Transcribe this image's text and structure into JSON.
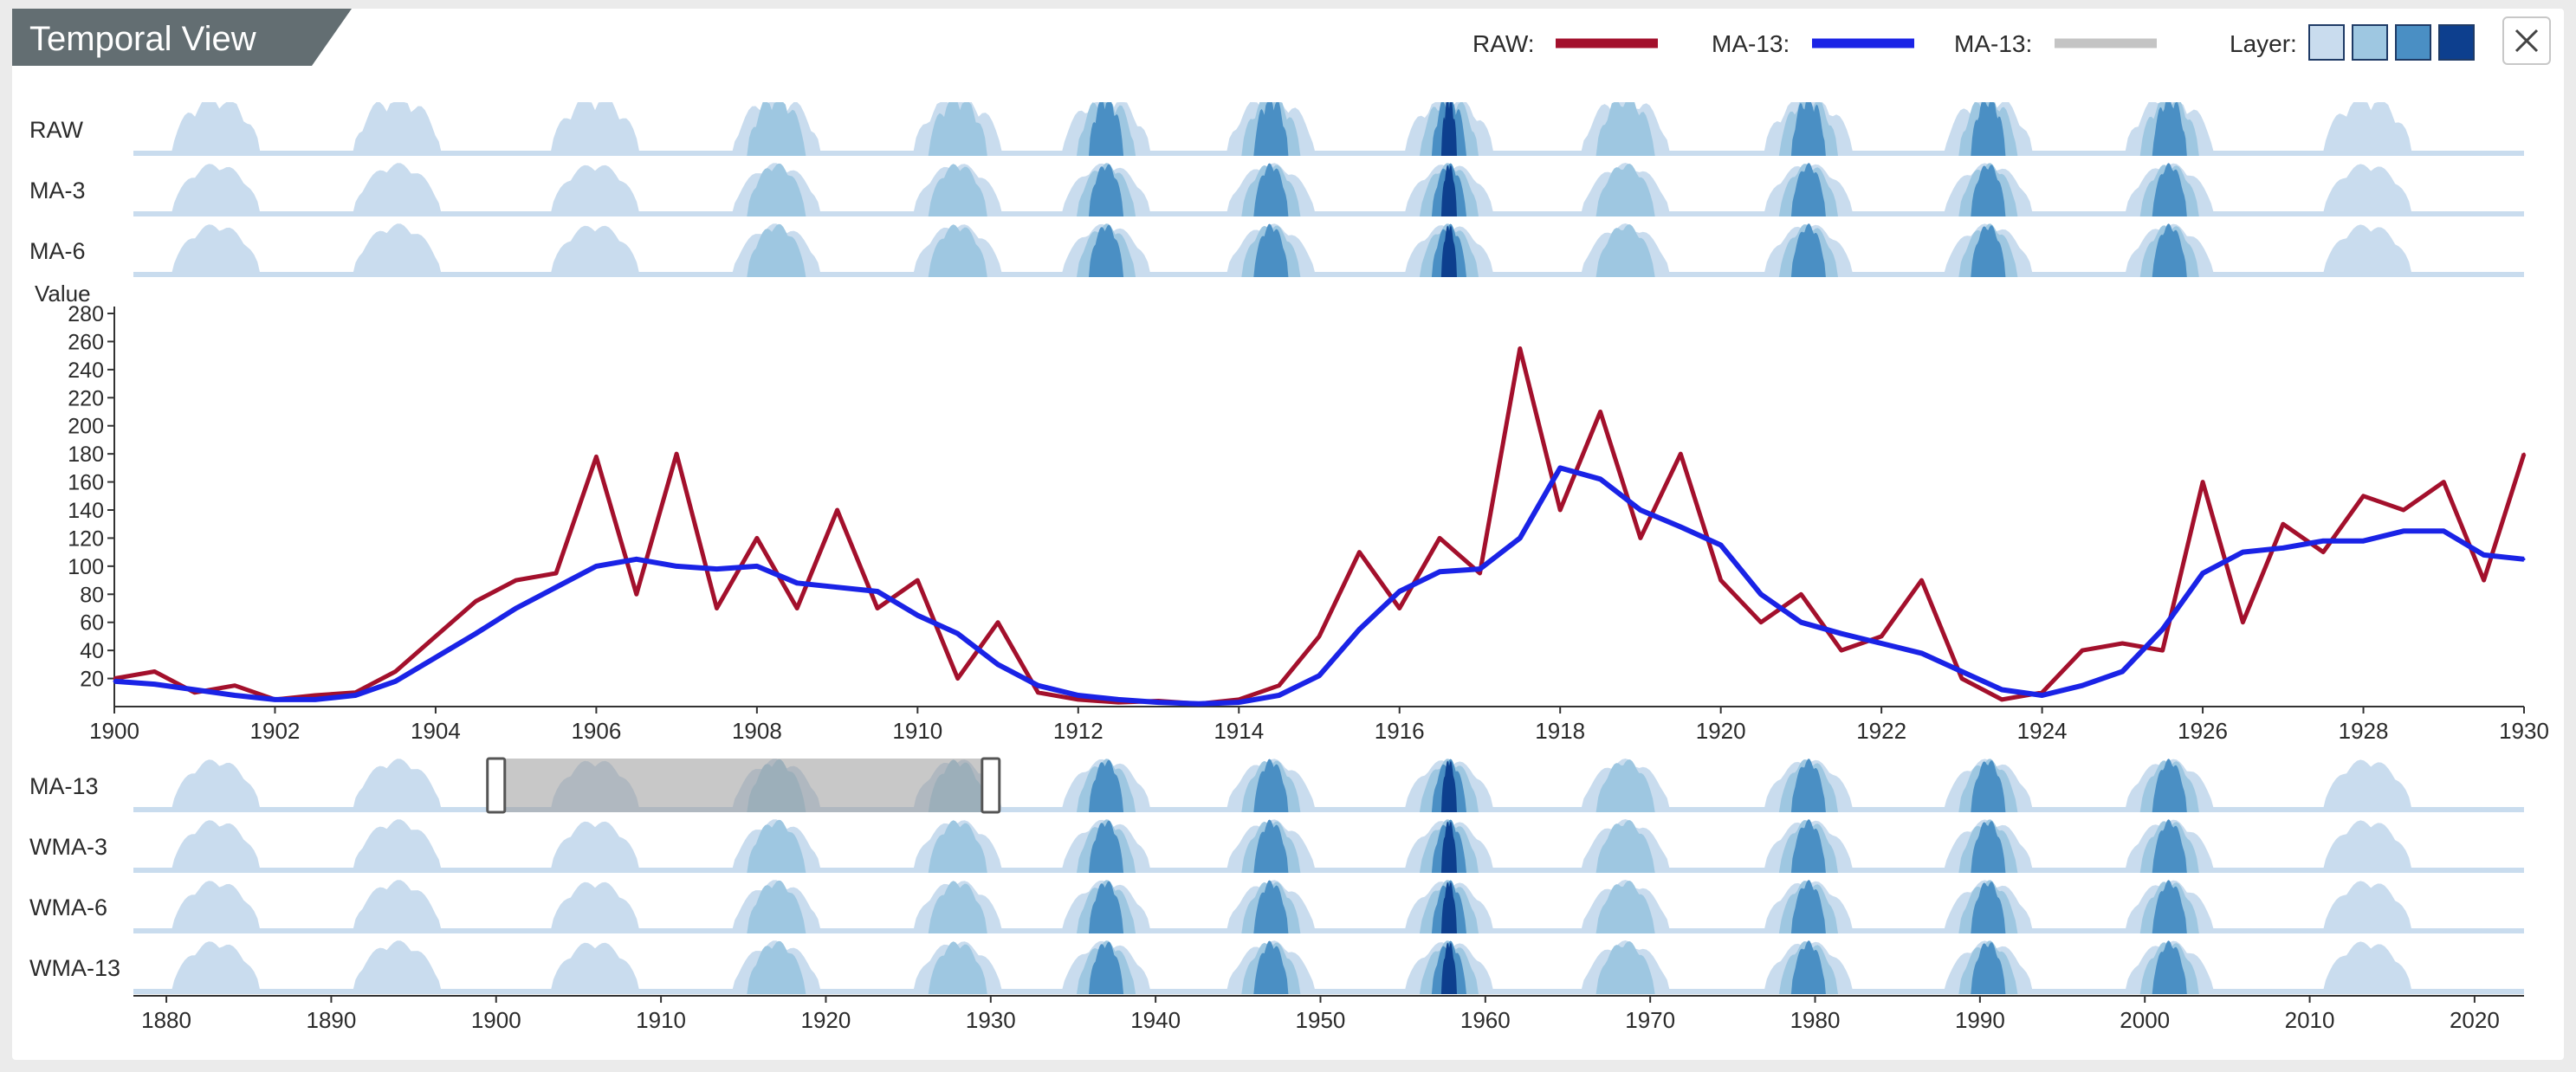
{
  "title": "Temporal View",
  "legend": {
    "raw_label": "RAW:",
    "ma_label": "MA-13:",
    "ma_gray_label": "MA-13:",
    "layer_label": "Layer:",
    "raw_color": "#a3102c",
    "ma_color": "#1a23e6",
    "gray_color": "#c4c4c4",
    "layer_colors": [
      "#c9dcee",
      "#9ec7e1",
      "#4a8fc4",
      "#0d3f8e"
    ]
  },
  "close_icon": "close-icon",
  "horizon_rows_top": [
    "RAW",
    "MA-3",
    "MA-6"
  ],
  "horizon_rows_bottom": [
    "MA-13",
    "WMA-3",
    "WMA-6",
    "WMA-13"
  ],
  "overview_axis": {
    "ticks": [
      "1880",
      "1890",
      "1900",
      "1910",
      "1920",
      "1930",
      "1940",
      "1950",
      "1960",
      "1970",
      "1980",
      "1990",
      "2000",
      "2010",
      "2020"
    ],
    "range": [
      1878,
      2023
    ]
  },
  "brush": {
    "start": 1900,
    "end": 1930
  },
  "chart_data": {
    "type": "line",
    "ylabel": "Value",
    "xlim": [
      1900,
      1930
    ],
    "ylim": [
      0,
      280
    ],
    "y_ticks": [
      20,
      40,
      60,
      80,
      100,
      120,
      140,
      160,
      180,
      200,
      220,
      240,
      260,
      280
    ],
    "x_ticks": [
      "1900",
      "1902",
      "1904",
      "1906",
      "1908",
      "1910",
      "1912",
      "1914",
      "1916",
      "1918",
      "1920",
      "1922",
      "1924",
      "1926",
      "1928",
      "1930"
    ],
    "series": [
      {
        "name": "RAW",
        "x": [
          1900,
          1900.5,
          1901,
          1901.5,
          1902,
          1902.5,
          1903,
          1903.5,
          1904,
          1904.5,
          1905,
          1905.5,
          1906,
          1906.5,
          1907,
          1907.5,
          1908,
          1908.5,
          1909,
          1909.5,
          1910,
          1910.5,
          1911,
          1911.5,
          1912,
          1912.5,
          1913,
          1913.5,
          1914,
          1914.5,
          1915,
          1915.5,
          1916,
          1916.5,
          1917,
          1917.5,
          1918,
          1918.5,
          1919,
          1919.5,
          1920,
          1920.5,
          1921,
          1921.5,
          1922,
          1922.5,
          1923,
          1923.5,
          1924,
          1924.5,
          1925,
          1925.5,
          1926,
          1926.5,
          1927,
          1927.5,
          1928,
          1928.5,
          1929,
          1929.5,
          1930
        ],
        "y": [
          20,
          25,
          10,
          15,
          5,
          8,
          10,
          25,
          50,
          75,
          90,
          95,
          178,
          80,
          180,
          70,
          120,
          70,
          140,
          70,
          90,
          20,
          60,
          10,
          5,
          3,
          4,
          2,
          5,
          15,
          50,
          110,
          70,
          120,
          95,
          255,
          140,
          210,
          120,
          180,
          90,
          60,
          80,
          40,
          50,
          90,
          20,
          5,
          10,
          40,
          45,
          40,
          160,
          60,
          130,
          110,
          150,
          140,
          160,
          90,
          180
        ]
      },
      {
        "name": "MA-13",
        "x": [
          1900,
          1900.5,
          1901,
          1901.5,
          1902,
          1902.5,
          1903,
          1903.5,
          1904,
          1904.5,
          1905,
          1905.5,
          1906,
          1906.5,
          1907,
          1907.5,
          1908,
          1908.5,
          1909,
          1909.5,
          1910,
          1910.5,
          1911,
          1911.5,
          1912,
          1912.5,
          1913,
          1913.5,
          1914,
          1914.5,
          1915,
          1915.5,
          1916,
          1916.5,
          1917,
          1917.5,
          1918,
          1918.5,
          1919,
          1919.5,
          1920,
          1920.5,
          1921,
          1921.5,
          1922,
          1922.5,
          1923,
          1923.5,
          1924,
          1924.5,
          1925,
          1925.5,
          1926,
          1926.5,
          1927,
          1927.5,
          1928,
          1928.5,
          1929,
          1929.5,
          1930
        ],
        "y": [
          18,
          16,
          12,
          8,
          5,
          5,
          8,
          18,
          35,
          52,
          70,
          85,
          100,
          105,
          100,
          98,
          100,
          88,
          85,
          82,
          65,
          52,
          30,
          15,
          8,
          5,
          3,
          2,
          3,
          8,
          22,
          55,
          82,
          96,
          98,
          120,
          170,
          162,
          140,
          128,
          115,
          80,
          60,
          52,
          45,
          38,
          25,
          12,
          8,
          15,
          25,
          55,
          95,
          110,
          113,
          118,
          118,
          125,
          125,
          108,
          105
        ]
      }
    ]
  }
}
